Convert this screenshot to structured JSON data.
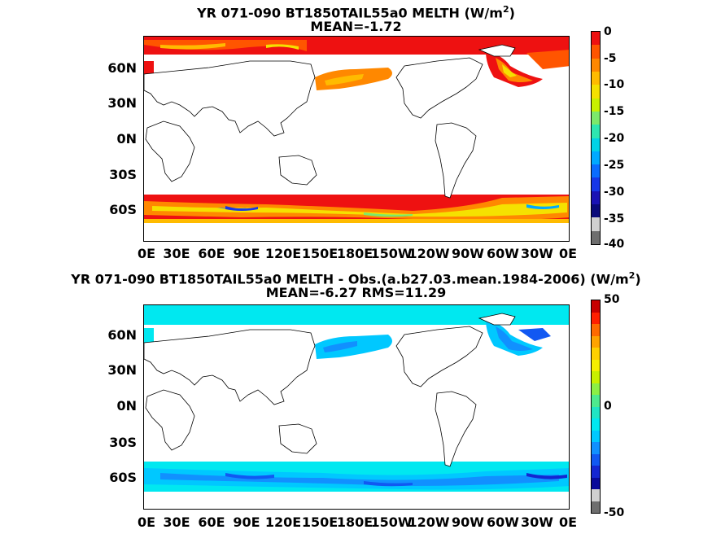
{
  "top": {
    "title_line1": "YR 071-090 BT1850TAIL55a0  MELTH (W/m",
    "title_sup": "2",
    "title_line1_end": ")",
    "title_line2": "MEAN=-1.72",
    "colorbar_ticks": [
      "0",
      "-5",
      "-10",
      "-15",
      "-20",
      "-25",
      "-30",
      "-35",
      "-40"
    ],
    "colors": [
      "#ee1111",
      "#ff5500",
      "#ff8800",
      "#ffbb00",
      "#f5e100",
      "#c8f000",
      "#7ce96b",
      "#2ee6b0",
      "#00d2e6",
      "#00a9ff",
      "#0a6cff",
      "#1637e8",
      "#1a12b4",
      "#0a0a7a",
      "#d0d0d0",
      "#6e6e6e"
    ]
  },
  "bottom": {
    "title_line1": "YR 071-090 BT1850TAIL55a0 MELTH - Obs.(a.b27.03.mean.1984-2006) (W/m",
    "title_sup": "2",
    "title_line1_end": ")",
    "title_line2": "MEAN=-6.27 RMS=11.29",
    "colorbar_ticks": [
      "50",
      "0",
      "-50"
    ],
    "colors": [
      "#c80000",
      "#ff1f00",
      "#ff6a00",
      "#ffa300",
      "#ffd000",
      "#f5ef00",
      "#c8f000",
      "#8cef45",
      "#4eea8e",
      "#20e4c4",
      "#00e8f0",
      "#00c8ff",
      "#1190ff",
      "#1158f2",
      "#1426d2",
      "#0a0a9a",
      "#d0d0d0",
      "#6e6e6e"
    ]
  },
  "lat_labels": [
    "60N",
    "30N",
    "0N",
    "30S",
    "60S"
  ],
  "lon_labels": [
    "0E",
    "30E",
    "60E",
    "90E",
    "120E",
    "150E",
    "180E",
    "150W",
    "120W",
    "90W",
    "60W",
    "30W",
    "0E"
  ]
}
